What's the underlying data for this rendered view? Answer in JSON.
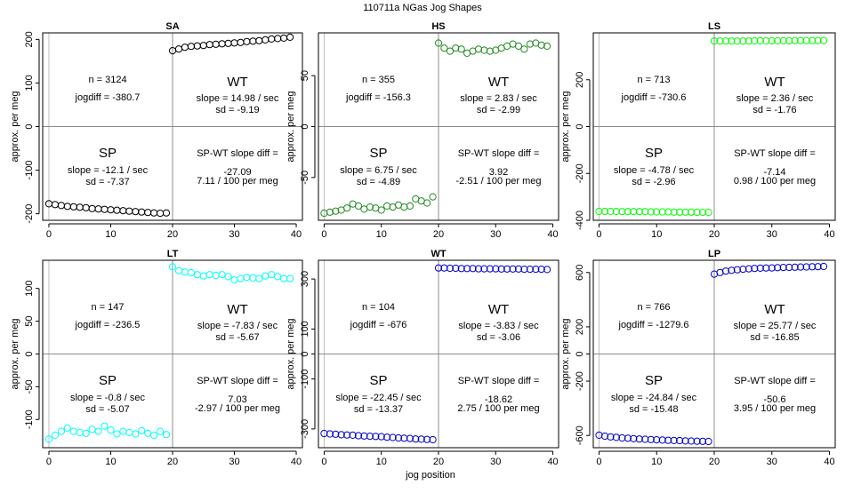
{
  "figure": {
    "title": "110711a    NGas Jog Shapes",
    "xlabel": "jog position"
  },
  "chart_data": [
    {
      "type": "scatter",
      "title": "SA",
      "xlabel": "jog position",
      "ylabel": "approx. per meg",
      "xlim": [
        -1,
        41
      ],
      "ylim": [
        -215,
        215
      ],
      "xticks": [
        0,
        10,
        20,
        30,
        40
      ],
      "yticks": [
        -200,
        -100,
        0,
        100,
        200
      ],
      "color": "#000000",
      "x": [
        0,
        1,
        2,
        3,
        4,
        5,
        6,
        7,
        8,
        9,
        10,
        11,
        12,
        13,
        14,
        15,
        16,
        17,
        18,
        19,
        20,
        21,
        22,
        23,
        24,
        25,
        26,
        27,
        28,
        29,
        30,
        31,
        32,
        33,
        34,
        35,
        36,
        37,
        38,
        39
      ],
      "values": [
        -177,
        -179,
        -181,
        -183,
        -184,
        -185,
        -186,
        -188,
        -189,
        -190,
        -191,
        -192,
        -193,
        -194,
        -195,
        -196,
        -197,
        -198,
        -199,
        -198,
        174,
        178,
        182,
        184,
        185,
        186,
        188,
        189,
        190,
        191,
        192,
        193,
        195,
        196,
        197,
        199,
        201,
        202,
        203,
        205
      ],
      "stats": {
        "n": "n = 3124",
        "jogdiff": "jogdiff = -380.7",
        "wt_label": "WT",
        "wt_slope": "slope = 14.98 / sec",
        "wt_sd": "sd = -9.19",
        "sp_label": "SP",
        "sp_slope": "slope = -12.1 / sec",
        "sp_sd": "sd = -7.37",
        "diff_label": "SP-WT slope diff =",
        "diff_value": "-27.09",
        "diff_rate": "7.11 / 100 per meg"
      }
    },
    {
      "type": "scatter",
      "title": "HS",
      "xlabel": "jog position",
      "ylabel": "approx. per meg",
      "xlim": [
        -1,
        41
      ],
      "ylim": [
        -92,
        92
      ],
      "xticks": [
        0,
        10,
        20,
        30,
        40
      ],
      "yticks": [
        -50,
        0,
        50
      ],
      "color": "#228b22",
      "x": [
        0,
        1,
        2,
        3,
        4,
        5,
        6,
        7,
        8,
        9,
        10,
        11,
        12,
        13,
        14,
        15,
        16,
        17,
        18,
        19,
        20,
        21,
        22,
        23,
        24,
        25,
        26,
        27,
        28,
        29,
        30,
        31,
        32,
        33,
        34,
        35,
        36,
        37,
        38,
        39
      ],
      "values": [
        -85,
        -84,
        -83,
        -82,
        -80,
        -76,
        -78,
        -81,
        -79,
        -80,
        -82,
        -78,
        -79,
        -77,
        -79,
        -78,
        -71,
        -73,
        -75,
        -69,
        82,
        77,
        74,
        77,
        76,
        72,
        74,
        76,
        75,
        74,
        75,
        77,
        79,
        81,
        79,
        76,
        81,
        82,
        80,
        79
      ],
      "stats": {
        "n": "n = 355",
        "jogdiff": "jogdiff = -156.3",
        "wt_label": "WT",
        "wt_slope": "slope = 2.83 / sec",
        "wt_sd": "sd = -2.99",
        "sp_label": "SP",
        "sp_slope": "slope = 6.75 / sec",
        "sp_sd": "sd = -4.89",
        "diff_label": "SP-WT slope diff =",
        "diff_value": "3.92",
        "diff_rate": "-2.51 / 100 per meg"
      }
    },
    {
      "type": "scatter",
      "title": "LS",
      "xlabel": "jog position",
      "ylabel": "approx. per meg",
      "xlim": [
        -1,
        41
      ],
      "ylim": [
        -400,
        400
      ],
      "xticks": [
        0,
        10,
        20,
        30,
        40
      ],
      "yticks": [
        -400,
        -200,
        0,
        200
      ],
      "color": "#00ff00",
      "x": [
        0,
        1,
        2,
        3,
        4,
        5,
        6,
        7,
        8,
        9,
        10,
        11,
        12,
        13,
        14,
        15,
        16,
        17,
        18,
        19,
        20,
        21,
        22,
        23,
        24,
        25,
        26,
        27,
        28,
        29,
        30,
        31,
        32,
        33,
        34,
        35,
        36,
        37,
        38,
        39
      ],
      "values": [
        -362,
        -362,
        -362,
        -362,
        -363,
        -363,
        -363,
        -363,
        -363,
        -364,
        -364,
        -364,
        -364,
        -365,
        -365,
        -365,
        -365,
        -366,
        -366,
        -366,
        365,
        365,
        365,
        365,
        365,
        365,
        365,
        366,
        366,
        366,
        366,
        366,
        366,
        366,
        367,
        367,
        367,
        367,
        367,
        367
      ],
      "stats": {
        "n": "n = 713",
        "jogdiff": "jogdiff = -730.6",
        "wt_label": "WT",
        "wt_slope": "slope = 2.36 / sec",
        "wt_sd": "sd = -1.76",
        "sp_label": "SP",
        "sp_slope": "slope = -4.78 / sec",
        "sp_sd": "sd = -2.96",
        "diff_label": "SP-WT slope diff =",
        "diff_value": "-7.14",
        "diff_rate": "0.98 / 100 per meg"
      }
    },
    {
      "type": "scatter",
      "title": "LT",
      "xlabel": "jog position",
      "ylabel": "approx. per meg",
      "xlim": [
        -1,
        41
      ],
      "ylim": [
        -143,
        143
      ],
      "xticks": [
        0,
        10,
        20,
        30,
        40
      ],
      "yticks": [
        -100,
        -50,
        0,
        50,
        100
      ],
      "color": "#00ffff",
      "x": [
        0,
        1,
        2,
        3,
        4,
        5,
        6,
        7,
        8,
        9,
        10,
        11,
        12,
        13,
        14,
        15,
        16,
        17,
        18,
        19,
        20,
        21,
        22,
        23,
        24,
        25,
        26,
        27,
        28,
        29,
        30,
        31,
        32,
        33,
        34,
        35,
        36,
        37,
        38,
        39
      ],
      "values": [
        -130,
        -124,
        -118,
        -113,
        -118,
        -120,
        -121,
        -115,
        -118,
        -110,
        -116,
        -122,
        -118,
        -120,
        -122,
        -117,
        -121,
        -124,
        -118,
        -123,
        133,
        127,
        125,
        124,
        121,
        119,
        121,
        120,
        121,
        118,
        113,
        115,
        117,
        116,
        115,
        119,
        121,
        118,
        115,
        115
      ],
      "stats": {
        "n": "n = 147",
        "jogdiff": "jogdiff = -236.5",
        "wt_label": "WT",
        "wt_slope": "slope = -7.83 / sec",
        "wt_sd": "sd = -5.67",
        "sp_label": "SP",
        "sp_slope": "slope = -0.8 / sec",
        "sp_sd": "sd = -5.07",
        "diff_label": "SP-WT slope diff =",
        "diff_value": "7.03",
        "diff_rate": "-2.97 / 100 per meg"
      }
    },
    {
      "type": "scatter",
      "title": "WT",
      "xlabel": "jog position",
      "ylabel": "approx. per meg",
      "xlim": [
        -1,
        41
      ],
      "ylim": [
        -375,
        375
      ],
      "xticks": [
        0,
        10,
        20,
        30,
        40
      ],
      "yticks": [
        -300,
        -100,
        0,
        100,
        300
      ],
      "color": "#0000cd",
      "x": [
        0,
        1,
        2,
        3,
        4,
        5,
        6,
        7,
        8,
        9,
        10,
        11,
        12,
        13,
        14,
        15,
        16,
        17,
        18,
        19,
        20,
        21,
        22,
        23,
        24,
        25,
        26,
        27,
        28,
        29,
        30,
        31,
        32,
        33,
        34,
        35,
        36,
        37,
        38,
        39
      ],
      "values": [
        -318,
        -320,
        -321,
        -323,
        -324,
        -325,
        -327,
        -328,
        -329,
        -330,
        -331,
        -333,
        -334,
        -336,
        -337,
        -338,
        -340,
        -341,
        -342,
        -343,
        344,
        344,
        343,
        343,
        342,
        342,
        342,
        341,
        341,
        341,
        341,
        340,
        340,
        340,
        340,
        339,
        339,
        339,
        339,
        338
      ],
      "stats": {
        "n": "n = 104",
        "jogdiff": "jogdiff = -676",
        "wt_label": "WT",
        "wt_slope": "slope = -3.83 / sec",
        "wt_sd": "sd = -3.06",
        "sp_label": "SP",
        "sp_slope": "slope = -22.45 / sec",
        "sp_sd": "sd = -13.37",
        "diff_label": "SP-WT slope diff =",
        "diff_value": "-18.62",
        "diff_rate": "2.75 / 100 per meg"
      }
    },
    {
      "type": "scatter",
      "title": "LP",
      "xlabel": "jog position",
      "ylabel": "approx. per meg",
      "xlim": [
        -1,
        41
      ],
      "ylim": [
        -690,
        690
      ],
      "xticks": [
        0,
        10,
        20,
        30,
        40
      ],
      "yticks": [
        -600,
        -200,
        0,
        200,
        600
      ],
      "color": "#0000cd",
      "x": [
        0,
        1,
        2,
        3,
        4,
        5,
        6,
        7,
        8,
        9,
        10,
        11,
        12,
        13,
        14,
        15,
        16,
        17,
        18,
        19,
        20,
        21,
        22,
        23,
        24,
        25,
        26,
        27,
        28,
        29,
        30,
        31,
        32,
        33,
        34,
        35,
        36,
        37,
        38,
        39
      ],
      "values": [
        -598,
        -605,
        -610,
        -614,
        -618,
        -620,
        -624,
        -626,
        -628,
        -630,
        -632,
        -634,
        -636,
        -637,
        -638,
        -640,
        -641,
        -642,
        -643,
        -644,
        588,
        600,
        610,
        616,
        620,
        624,
        627,
        630,
        632,
        633,
        634,
        636,
        637,
        638,
        639,
        640,
        641,
        642,
        643,
        644
      ],
      "stats": {
        "n": "n = 766",
        "jogdiff": "jogdiff = -1279.6",
        "wt_label": "WT",
        "wt_slope": "slope = 25.77 / sec",
        "wt_sd": "sd = -16.85",
        "sp_label": "SP",
        "sp_slope": "slope = -24.84 / sec",
        "sp_sd": "sd = -15.48",
        "diff_label": "SP-WT slope diff =",
        "diff_value": "-50.6",
        "diff_rate": "3.95 / 100 per meg"
      }
    }
  ]
}
